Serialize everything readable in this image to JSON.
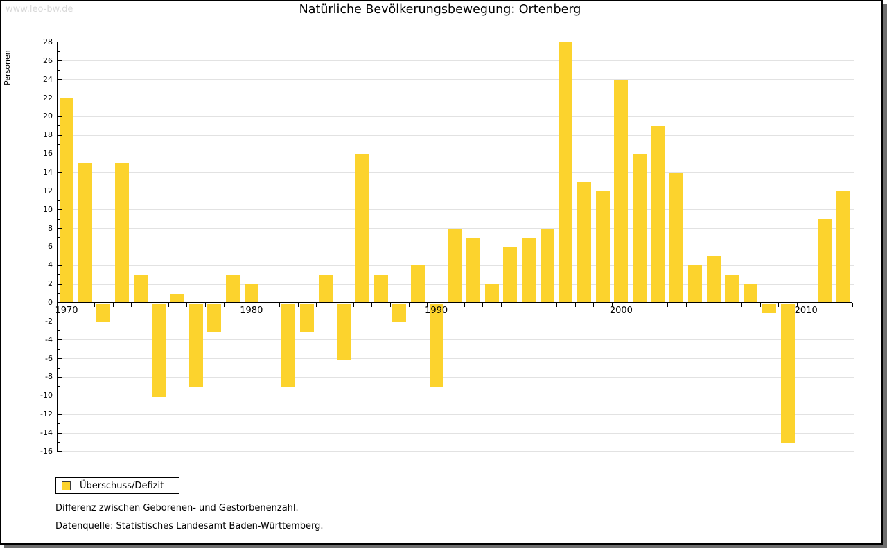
{
  "watermark": "www.leo-bw.de",
  "title": "Natürliche Bevölkerungsbewegung: Ortenberg",
  "legend": {
    "label": "Überschuss/Defizit",
    "swatch_color": "#FCD32D"
  },
  "footnotes": {
    "line1": "Differenz zwischen Geborenen- und Gestorbenenzahl.",
    "line2": "Datenquelle: Statistisches Landesamt Baden-Württemberg."
  },
  "chart_data": {
    "type": "bar",
    "title": "Natürliche Bevölkerungsbewegung: Ortenberg",
    "xlabel": "",
    "ylabel": "Personen",
    "ylim": [
      -16,
      28
    ],
    "ytick_step": 2,
    "grid": true,
    "legend_position": "bottom-left",
    "bar_color": "#FCD32D",
    "series_name": "Überschuss/Defizit",
    "categories": [
      1970,
      1971,
      1972,
      1973,
      1974,
      1975,
      1976,
      1977,
      1978,
      1979,
      1980,
      1981,
      1982,
      1983,
      1984,
      1985,
      1986,
      1987,
      1988,
      1989,
      1990,
      1991,
      1992,
      1993,
      1994,
      1995,
      1996,
      1997,
      1998,
      1999,
      2000,
      2001,
      2002,
      2003,
      2004,
      2005,
      2006,
      2007,
      2008,
      2009,
      2010,
      2011,
      2012
    ],
    "values": [
      22,
      15,
      -2,
      15,
      3,
      -10,
      1,
      -9,
      -3,
      3,
      2,
      0,
      -9,
      -3,
      3,
      -6,
      16,
      3,
      -2,
      4,
      -9,
      8,
      7,
      2,
      6,
      7,
      8,
      28,
      13,
      12,
      24,
      16,
      19,
      14,
      4,
      5,
      3,
      2,
      -1,
      -15,
      0,
      9,
      12
    ],
    "x_decade_labels": [
      "1970",
      "1980",
      "1990",
      "2000",
      "2010"
    ]
  }
}
